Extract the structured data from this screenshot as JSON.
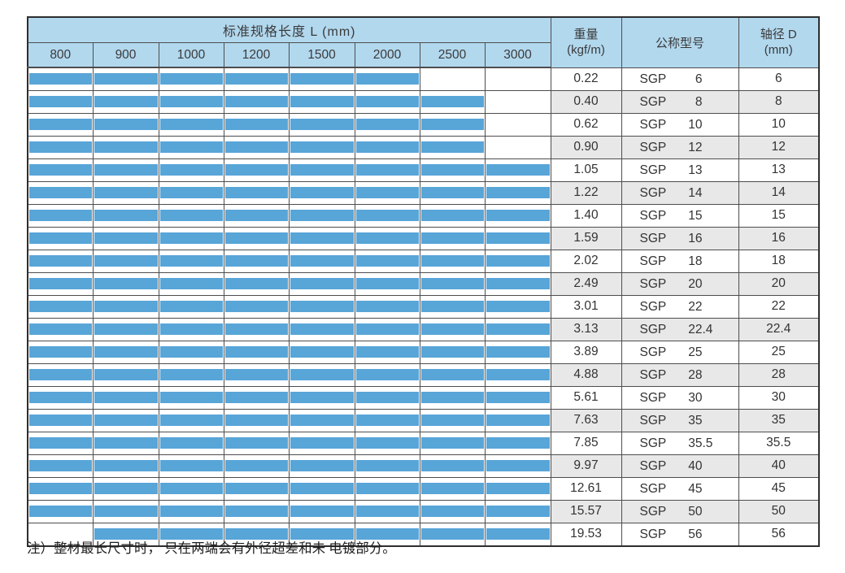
{
  "table": {
    "length_header": {
      "title": "标准规格长度 L (mm)",
      "columns": [
        "800",
        "900",
        "1000",
        "1200",
        "1500",
        "2000",
        "2500",
        "3000"
      ]
    },
    "weight_header": {
      "line1": "重量",
      "line2": "(kgf/m)"
    },
    "model_header": "公称型号",
    "diameter_header": {
      "line1": "轴径 D",
      "line2": "(mm)"
    },
    "rows": [
      {
        "weight": "0.22",
        "model": "SGP",
        "size_int": "6",
        "size_dec": "",
        "diameter": "6",
        "bar_start": 0,
        "bar_end": 5
      },
      {
        "weight": "0.40",
        "model": "SGP",
        "size_int": "8",
        "size_dec": "",
        "diameter": "8",
        "bar_start": 0,
        "bar_end": 6
      },
      {
        "weight": "0.62",
        "model": "SGP",
        "size_int": "10",
        "size_dec": "",
        "diameter": "10",
        "bar_start": 0,
        "bar_end": 6
      },
      {
        "weight": "0.90",
        "model": "SGP",
        "size_int": "12",
        "size_dec": "",
        "diameter": "12",
        "bar_start": 0,
        "bar_end": 6
      },
      {
        "weight": "1.05",
        "model": "SGP",
        "size_int": "13",
        "size_dec": "",
        "diameter": "13",
        "bar_start": 0,
        "bar_end": 7
      },
      {
        "weight": "1.22",
        "model": "SGP",
        "size_int": "14",
        "size_dec": "",
        "diameter": "14",
        "bar_start": 0,
        "bar_end": 7
      },
      {
        "weight": "1.40",
        "model": "SGP",
        "size_int": "15",
        "size_dec": "",
        "diameter": "15",
        "bar_start": 0,
        "bar_end": 7
      },
      {
        "weight": "1.59",
        "model": "SGP",
        "size_int": "16",
        "size_dec": "",
        "diameter": "16",
        "bar_start": 0,
        "bar_end": 7
      },
      {
        "weight": "2.02",
        "model": "SGP",
        "size_int": "18",
        "size_dec": "",
        "diameter": "18",
        "bar_start": 0,
        "bar_end": 7
      },
      {
        "weight": "2.49",
        "model": "SGP",
        "size_int": "20",
        "size_dec": "",
        "diameter": "20",
        "bar_start": 0,
        "bar_end": 7
      },
      {
        "weight": "3.01",
        "model": "SGP",
        "size_int": "22",
        "size_dec": "",
        "diameter": "22",
        "bar_start": 0,
        "bar_end": 7
      },
      {
        "weight": "3.13",
        "model": "SGP",
        "size_int": "22",
        "size_dec": ".4",
        "diameter": "22.4",
        "bar_start": 0,
        "bar_end": 7
      },
      {
        "weight": "3.89",
        "model": "SGP",
        "size_int": "25",
        "size_dec": "",
        "diameter": "25",
        "bar_start": 0,
        "bar_end": 7
      },
      {
        "weight": "4.88",
        "model": "SGP",
        "size_int": "28",
        "size_dec": "",
        "diameter": "28",
        "bar_start": 0,
        "bar_end": 7
      },
      {
        "weight": "5.61",
        "model": "SGP",
        "size_int": "30",
        "size_dec": "",
        "diameter": "30",
        "bar_start": 0,
        "bar_end": 7
      },
      {
        "weight": "7.63",
        "model": "SGP",
        "size_int": "35",
        "size_dec": "",
        "diameter": "35",
        "bar_start": 0,
        "bar_end": 7
      },
      {
        "weight": "7.85",
        "model": "SGP",
        "size_int": "35",
        "size_dec": ".5",
        "diameter": "35.5",
        "bar_start": 0,
        "bar_end": 7
      },
      {
        "weight": "9.97",
        "model": "SGP",
        "size_int": "40",
        "size_dec": "",
        "diameter": "40",
        "bar_start": 0,
        "bar_end": 7
      },
      {
        "weight": "12.61",
        "model": "SGP",
        "size_int": "45",
        "size_dec": "",
        "diameter": "45",
        "bar_start": 0,
        "bar_end": 7
      },
      {
        "weight": "15.57",
        "model": "SGP",
        "size_int": "50",
        "size_dec": "",
        "diameter": "50",
        "bar_start": 0,
        "bar_end": 7
      },
      {
        "weight": "19.53",
        "model": "SGP",
        "size_int": "56",
        "size_dec": "",
        "diameter": "56",
        "bar_start": 1,
        "bar_end": 7
      }
    ]
  },
  "note": "注）整材最长尺寸时， 只在两端会有外径超差和未 电镀部分。",
  "colors": {
    "bar": "#58a5d8",
    "header_bg": "#b2d8ee",
    "alt_row": "#e8e8e8",
    "grid_line": "#4d4d4d"
  }
}
